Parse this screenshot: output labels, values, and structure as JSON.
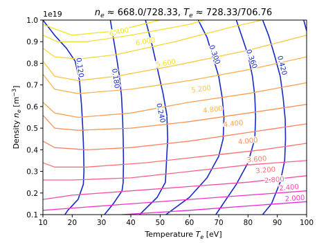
{
  "chart_data": {
    "type": "line",
    "title": "n_e ≈ 668.0/728.33, T_e ≈ 728.33/706.76",
    "title_parts": {
      "ne_sym": "n",
      "ne_sub": "e",
      "ne_value": " ≈ 668.0/728.33, ",
      "te_sym": "T",
      "te_sub": "e",
      "te_value": " ≈ 728.33/706.76"
    },
    "xlabel": "Temperature T_e [eV]",
    "xlabel_parts": {
      "pre": "Temperature ",
      "sym": "T",
      "sub": "e",
      "post": " [eV]"
    },
    "ylabel": "Density n_e [m^-3]",
    "ylabel_parts": {
      "pre": "Density ",
      "sym": "n",
      "sub": "e",
      "post": " [m",
      "sup": "−3",
      "end": "]"
    },
    "y_offset_label": "1e19",
    "xlim": [
      10,
      100
    ],
    "ylim": [
      0.1,
      1.0
    ],
    "x_ticks": [
      10,
      20,
      30,
      40,
      50,
      60,
      70,
      80,
      90,
      100
    ],
    "y_ticks": [
      0.1,
      0.2,
      0.3,
      0.4,
      0.5,
      0.6,
      0.7,
      0.8,
      0.9,
      1.0
    ],
    "x_tick_labels": [
      "10",
      "20",
      "30",
      "40",
      "50",
      "60",
      "70",
      "80",
      "90",
      "100"
    ],
    "y_tick_labels": [
      "0.1",
      "0.2",
      "0.3",
      "0.4",
      "0.5",
      "0.6",
      "0.7",
      "0.8",
      "0.9",
      "1.0"
    ],
    "grid": false,
    "series": [
      {
        "group": "blue_contours",
        "color": "#1428c8",
        "lines": [
          {
            "label": "0.120",
            "points": [
              [
                10,
                1.0
              ],
              [
                14,
                0.93
              ],
              [
                18,
                0.87
              ],
              [
                21,
                0.81
              ],
              [
                22.5,
                0.72
              ],
              [
                23.2,
                0.6
              ],
              [
                23.6,
                0.5
              ],
              [
                23.9,
                0.4
              ],
              [
                24.0,
                0.3
              ],
              [
                23.8,
                0.24
              ],
              [
                22.0,
                0.17
              ],
              [
                18.5,
                0.12
              ],
              [
                17.5,
                0.1
              ]
            ]
          },
          {
            "label": "0.180",
            "points": [
              [
                33,
                1.0
              ],
              [
                34,
                0.92
              ],
              [
                35,
                0.84
              ],
              [
                36,
                0.75
              ],
              [
                36.8,
                0.65
              ],
              [
                37.2,
                0.55
              ],
              [
                37.4,
                0.45
              ],
              [
                37.5,
                0.35
              ],
              [
                37.4,
                0.25
              ],
              [
                37.0,
                0.21
              ],
              [
                34.0,
                0.15
              ],
              [
                31.0,
                0.1
              ]
            ]
          },
          {
            "label": "0.240",
            "points": [
              [
                45,
                1.0
              ],
              [
                47,
                0.9
              ],
              [
                49,
                0.78
              ],
              [
                51,
                0.66
              ],
              [
                52.3,
                0.56
              ],
              [
                52.6,
                0.45
              ],
              [
                52.2,
                0.35
              ],
              [
                51.8,
                0.25
              ],
              [
                49.0,
                0.18
              ],
              [
                43.0,
                0.1
              ]
            ]
          },
          {
            "label": "0.300",
            "points": [
              [
                63,
                1.0
              ],
              [
                66,
                0.92
              ],
              [
                68,
                0.83
              ],
              [
                70,
                0.74
              ],
              [
                71.2,
                0.64
              ],
              [
                71.8,
                0.55
              ],
              [
                71.5,
                0.45
              ],
              [
                70,
                0.37
              ],
              [
                66,
                0.27
              ],
              [
                60,
                0.18
              ],
              [
                52,
                0.1
              ]
            ]
          },
          {
            "label": "0.360",
            "points": [
              [
                76,
                1.0
              ],
              [
                78,
                0.92
              ],
              [
                80,
                0.84
              ],
              [
                81.5,
                0.74
              ],
              [
                82.3,
                0.65
              ],
              [
                82.6,
                0.55
              ],
              [
                82.3,
                0.45
              ],
              [
                80,
                0.34
              ],
              [
                76,
                0.24
              ],
              [
                69,
                0.1
              ]
            ]
          },
          {
            "label": "0.420",
            "points": [
              [
                85,
                1.0
              ],
              [
                87,
                0.93
              ],
              [
                89,
                0.84
              ],
              [
                91,
                0.74
              ],
              [
                92,
                0.64
              ],
              [
                92.7,
                0.54
              ],
              [
                92.8,
                0.45
              ],
              [
                92.5,
                0.35
              ],
              [
                91,
                0.25
              ],
              [
                88,
                0.15
              ],
              [
                85,
                0.1
              ]
            ]
          },
          {
            "label": "",
            "points": [
              [
                99,
                1.0
              ],
              [
                100,
                0.95
              ]
            ]
          }
        ]
      },
      {
        "group": "density_contours",
        "lines": [
          {
            "label": "6.400",
            "color": "#f5e51c",
            "points": [
              [
                10,
                0.98
              ],
              [
                20,
                0.93
              ],
              [
                35,
                0.95
              ],
              [
                50,
                1.0
              ]
            ]
          },
          {
            "label": "6.000",
            "color": "#f7df2a",
            "points": [
              [
                10,
                0.93
              ],
              [
                15,
                0.9
              ],
              [
                25,
                0.9
              ],
              [
                40,
                0.93
              ],
              [
                60,
                0.98
              ],
              [
                65,
                1.0
              ]
            ]
          },
          {
            "label": "5.600",
            "color": "#f8d53a",
            "points": [
              [
                10,
                0.87
              ],
              [
                14,
                0.83
              ],
              [
                22,
                0.82
              ],
              [
                35,
                0.84
              ],
              [
                55,
                0.9
              ],
              [
                75,
                0.97
              ],
              [
                85,
                1.0
              ]
            ]
          },
          {
            "label": "5.200",
            "color": "#f9c746",
            "points": [
              [
                10,
                0.81
              ],
              [
                14,
                0.74
              ],
              [
                22,
                0.72
              ],
              [
                35,
                0.74
              ],
              [
                55,
                0.79
              ],
              [
                80,
                0.86
              ],
              [
                100,
                0.93
              ]
            ]
          },
          {
            "label": "4.800",
            "color": "#fab44c",
            "points": [
              [
                10,
                0.75
              ],
              [
                14,
                0.68
              ],
              [
                22,
                0.66
              ],
              [
                40,
                0.68
              ],
              [
                60,
                0.72
              ],
              [
                80,
                0.77
              ],
              [
                100,
                0.83
              ]
            ]
          },
          {
            "label": "4.400",
            "color": "#fba050",
            "points": [
              [
                10,
                0.62
              ],
              [
                14,
                0.57
              ],
              [
                22,
                0.55
              ],
              [
                40,
                0.57
              ],
              [
                60,
                0.62
              ],
              [
                80,
                0.66
              ],
              [
                100,
                0.71
              ]
            ]
          },
          {
            "label": "4.000",
            "color": "#fb9054",
            "points": [
              [
                10,
                0.56
              ],
              [
                14,
                0.5
              ],
              [
                22,
                0.49
              ],
              [
                40,
                0.5
              ],
              [
                60,
                0.53
              ],
              [
                80,
                0.57
              ],
              [
                100,
                0.61
              ]
            ]
          },
          {
            "label": "3.600",
            "color": "#fb8060",
            "points": [
              [
                10,
                0.44
              ],
              [
                14,
                0.41
              ],
              [
                25,
                0.4
              ],
              [
                40,
                0.41
              ],
              [
                60,
                0.44
              ],
              [
                80,
                0.48
              ],
              [
                100,
                0.52
              ]
            ]
          },
          {
            "label": "3.200",
            "color": "#fa7070",
            "points": [
              [
                10,
                0.34
              ],
              [
                14,
                0.32
              ],
              [
                25,
                0.32
              ],
              [
                45,
                0.34
              ],
              [
                65,
                0.37
              ],
              [
                85,
                0.4
              ],
              [
                100,
                0.43
              ]
            ]
          },
          {
            "label": "2.800",
            "color": "#f86088",
            "points": [
              [
                10,
                0.26
              ],
              [
                20,
                0.26
              ],
              [
                40,
                0.27
              ],
              [
                60,
                0.3
              ],
              [
                80,
                0.33
              ],
              [
                100,
                0.35
              ]
            ]
          },
          {
            "label": "2.400",
            "color": "#f54aa6",
            "points": [
              [
                10,
                0.17
              ],
              [
                20,
                0.19
              ],
              [
                40,
                0.21
              ],
              [
                60,
                0.23
              ],
              [
                80,
                0.25
              ],
              [
                100,
                0.28
              ]
            ]
          },
          {
            "label": "2.000",
            "color": "#f033c8",
            "points": [
              [
                10,
                0.12
              ],
              [
                20,
                0.13
              ],
              [
                40,
                0.15
              ],
              [
                60,
                0.17
              ],
              [
                80,
                0.19
              ],
              [
                100,
                0.21
              ]
            ]
          },
          {
            "label": "",
            "color": "#e826d8",
            "points": [
              [
                37,
                0.1
              ],
              [
                60,
                0.12
              ],
              [
                80,
                0.14
              ],
              [
                100,
                0.16
              ]
            ]
          }
        ]
      }
    ],
    "annotations": [
      {
        "text": "0.120",
        "x": 22.6,
        "y": 0.78,
        "rotation": 82,
        "color": "#1428c8"
      },
      {
        "text": "0.180",
        "x": 34.8,
        "y": 0.73,
        "rotation": 82,
        "color": "#1428c8"
      },
      {
        "text": "0.240",
        "x": 50.2,
        "y": 0.57,
        "rotation": 78,
        "color": "#1428c8"
      },
      {
        "text": "0.300",
        "x": 68.6,
        "y": 0.84,
        "rotation": 70,
        "color": "#1428c8"
      },
      {
        "text": "0.360",
        "x": 81.2,
        "y": 0.82,
        "rotation": 70,
        "color": "#1428c8"
      },
      {
        "text": "0.420",
        "x": 91.6,
        "y": 0.79,
        "rotation": 75,
        "color": "#1428c8"
      },
      {
        "text": "6.400",
        "x": 36,
        "y": 0.945,
        "rotation": -12,
        "color": "#f5e51c"
      },
      {
        "text": "6.000",
        "x": 45,
        "y": 0.9,
        "rotation": -10,
        "color": "#f7df2a"
      },
      {
        "text": "5.600",
        "x": 52,
        "y": 0.8,
        "rotation": -9,
        "color": "#f8d53a"
      },
      {
        "text": "5.200",
        "x": 64,
        "y": 0.68,
        "rotation": -8,
        "color": "#f9c746"
      },
      {
        "text": "4.800",
        "x": 68,
        "y": 0.585,
        "rotation": -7,
        "color": "#fab44c"
      },
      {
        "text": "4.400",
        "x": 75,
        "y": 0.52,
        "rotation": -6,
        "color": "#fba050"
      },
      {
        "text": "4.000",
        "x": 80,
        "y": 0.44,
        "rotation": -6,
        "color": "#fb9054"
      },
      {
        "text": "3.600",
        "x": 83,
        "y": 0.355,
        "rotation": -5,
        "color": "#fb8060"
      },
      {
        "text": "3.200",
        "x": 86,
        "y": 0.305,
        "rotation": -5,
        "color": "#fa7070"
      },
      {
        "text": "2.800",
        "x": 89,
        "y": 0.26,
        "rotation": -5,
        "color": "#f86088"
      },
      {
        "text": "2.400",
        "x": 94,
        "y": 0.225,
        "rotation": -5,
        "color": "#f54aa6"
      },
      {
        "text": "2.000",
        "x": 96,
        "y": 0.175,
        "rotation": -4,
        "color": "#f033c8"
      }
    ]
  }
}
